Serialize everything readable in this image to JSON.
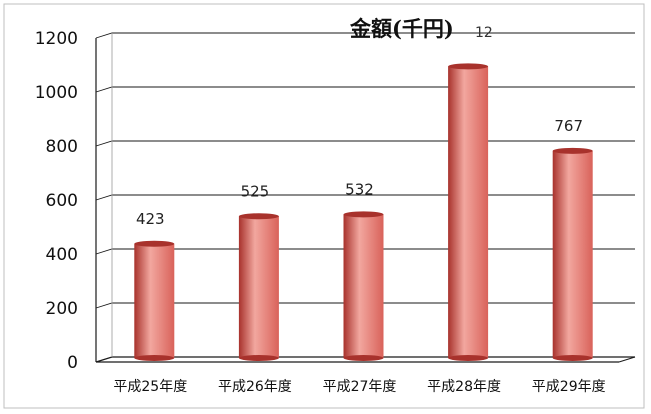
{
  "chart_data": {
    "type": "bar",
    "title": "金額(千円)",
    "title_suffix": "12",
    "categories": [
      "平成25年度",
      "平成26年度",
      "平成27年度",
      "平成28年度",
      "平成29年度"
    ],
    "values": [
      423,
      525,
      532,
      1080,
      767
    ],
    "data_labels": [
      "423",
      "525",
      "532",
      "",
      "767"
    ],
    "xlabel": "",
    "ylabel": "",
    "ylim": [
      0,
      1200
    ],
    "yticks": [
      0,
      200,
      400,
      600,
      800,
      1000,
      1200
    ],
    "grid": true,
    "legend": "none",
    "bar_color": "#d9625a",
    "bar_highlight": "#f2a79f",
    "bar_shadow": "#a8322c"
  }
}
